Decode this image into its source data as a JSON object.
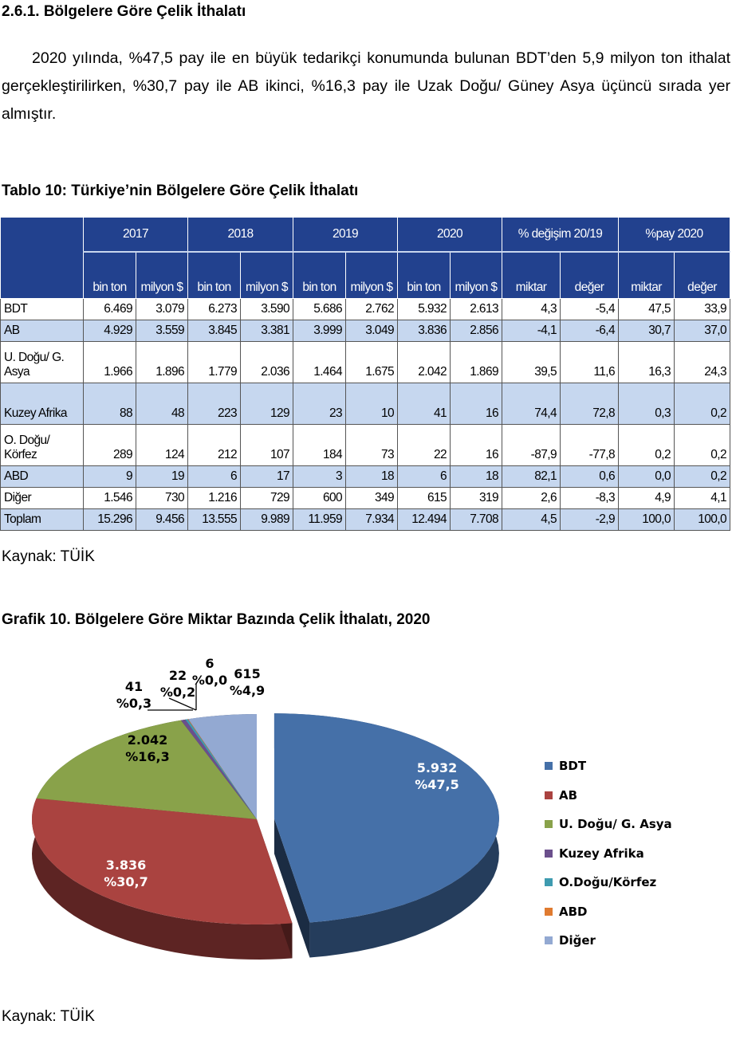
{
  "section_title": "2.6.1. Bölgelere Göre Çelik İthalatı",
  "paragraph": "2020 yılında, %47,5 pay ile en büyük tedarikçi konumunda bulunan BDT’den 5,9 milyon ton ithalat gerçekleştirilirken, %30,7 pay ile AB ikinci, %16,3 pay ile Uzak Doğu/ Güney Asya üçüncü sırada yer almıştır.",
  "table": {
    "caption": "Tablo 10: Türkiye’nin Bölgelere Göre Çelik İthalatı",
    "year_headers": [
      "2017",
      "2018",
      "2019",
      "2020",
      "% değişim 20/19",
      "%pay 2020"
    ],
    "sub_headers": [
      "bin ton",
      "milyon $",
      "bin ton",
      "milyon $",
      "bin ton",
      "milyon $",
      "bin ton",
      "milyon $",
      "miktar",
      "değer",
      "miktar",
      "değer"
    ],
    "rows": [
      {
        "name": "BDT",
        "values": [
          "6.469",
          "3.079",
          "6.273",
          "3.590",
          "5.686",
          "2.762",
          "5.932",
          "2.613",
          "4,3",
          "-5,4",
          "47,5",
          "33,9"
        ]
      },
      {
        "name": "AB",
        "values": [
          "4.929",
          "3.559",
          "3.845",
          "3.381",
          "3.999",
          "3.049",
          "3.836",
          "2.856",
          "-4,1",
          "-6,4",
          "30,7",
          "37,0"
        ]
      },
      {
        "name": "U. Doğu/ G. Asya",
        "values": [
          "1.966",
          "1.896",
          "1.779",
          "2.036",
          "1.464",
          "1.675",
          "2.042",
          "1.869",
          "39,5",
          "11,6",
          "16,3",
          "24,3"
        ]
      },
      {
        "name": "Kuzey Afrika",
        "values": [
          "88",
          "48",
          "223",
          "129",
          "23",
          "10",
          "41",
          "16",
          "74,4",
          "72,8",
          "0,3",
          "0,2"
        ]
      },
      {
        "name": "O. Doğu/ Körfez",
        "values": [
          "289",
          "124",
          "212",
          "107",
          "184",
          "73",
          "22",
          "16",
          "-87,9",
          "-77,8",
          "0,2",
          "0,2"
        ]
      },
      {
        "name": "ABD",
        "values": [
          "9",
          "19",
          "6",
          "17",
          "3",
          "18",
          "6",
          "18",
          "82,1",
          "0,6",
          "0,0",
          "0,2"
        ]
      },
      {
        "name": "Diğer",
        "values": [
          "1.546",
          "730",
          "1.216",
          "729",
          "600",
          "349",
          "615",
          "319",
          "2,6",
          "-8,3",
          "4,9",
          "4,1"
        ]
      },
      {
        "name": "Toplam",
        "values": [
          "15.296",
          "9.456",
          "13.555",
          "9.989",
          "11.959",
          "7.934",
          "12.494",
          "7.708",
          "4,5",
          "-2,9",
          "100,0",
          "100,0"
        ]
      }
    ],
    "source": "Kaynak: TÜİK"
  },
  "chart_data": {
    "type": "pie",
    "title": "Grafik 10. Bölgelere Göre Miktar Bazında Çelik İthalatı, 2020",
    "legend_position": "right",
    "slices": [
      {
        "name": "BDT",
        "value": 5932,
        "label": "5.932",
        "pct": "%47,5",
        "color": "#4570a8"
      },
      {
        "name": "AB",
        "value": 3836,
        "label": "3.836",
        "pct": "%30,7",
        "color": "#aa4340"
      },
      {
        "name": "U. Doğu/ G. Asya",
        "value": 2042,
        "label": "2.042",
        "pct": "%16,3",
        "color": "#89a24a"
      },
      {
        "name": "Kuzey Afrika",
        "value": 41,
        "label": "41",
        "pct": "%0,3",
        "color": "#6b4f8c"
      },
      {
        "name": "O.Doğu/Körfez",
        "value": 22,
        "label": "22",
        "pct": "%0,2",
        "color": "#3e9bb0"
      },
      {
        "name": "ABD",
        "value": 6,
        "label": "6",
        "pct": "%0,0",
        "color": "#e07b30"
      },
      {
        "name": "Diğer",
        "value": 615,
        "label": "615",
        "pct": "%4,9",
        "color": "#93a9d2"
      }
    ],
    "source": "Kaynak: TÜİK"
  }
}
